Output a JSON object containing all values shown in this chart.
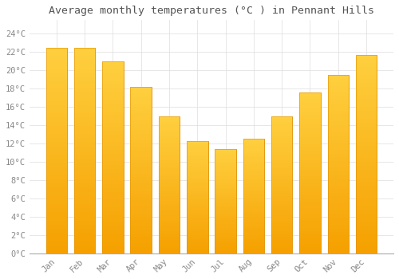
{
  "title": "Average monthly temperatures (°C ) in Pennant Hills",
  "months": [
    "Jan",
    "Feb",
    "Mar",
    "Apr",
    "May",
    "Jun",
    "Jul",
    "Aug",
    "Sep",
    "Oct",
    "Nov",
    "Dec"
  ],
  "values": [
    22.5,
    22.5,
    21.0,
    18.2,
    15.0,
    12.3,
    11.4,
    12.5,
    15.0,
    17.6,
    19.5,
    21.7
  ],
  "bar_color_bottom": "#F5A000",
  "bar_color_top": "#FFD040",
  "bar_edge_color": "#E09000",
  "background_color": "#FFFFFF",
  "grid_color": "#DDDDDD",
  "yticks": [
    0,
    2,
    4,
    6,
    8,
    10,
    12,
    14,
    16,
    18,
    20,
    22,
    24
  ],
  "ylim": [
    0,
    25.5
  ],
  "title_fontsize": 9.5,
  "tick_fontsize": 7.5,
  "title_color": "#555555",
  "tick_color": "#888888"
}
